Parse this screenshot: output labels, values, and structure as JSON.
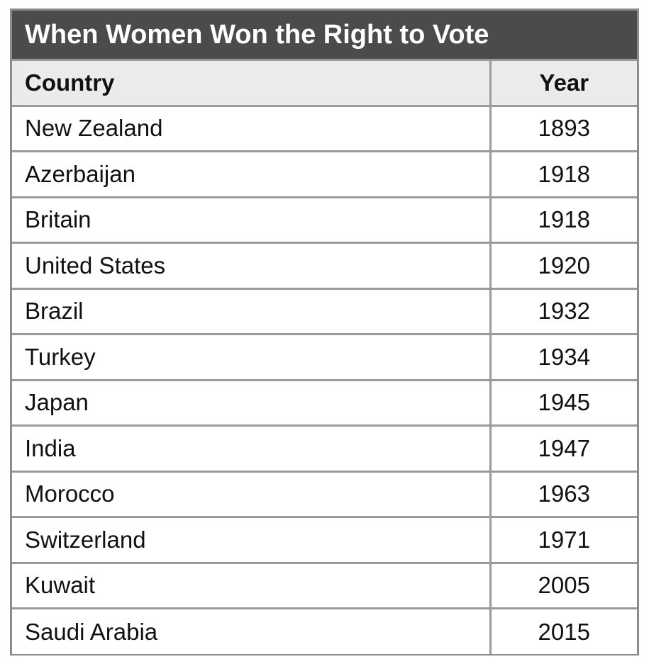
{
  "chart_data": {
    "type": "table",
    "title": "When Women Won the Right to Vote",
    "columns": [
      "Country",
      "Year"
    ],
    "rows": [
      {
        "country": "New Zealand",
        "year": "1893"
      },
      {
        "country": "Azerbaijan",
        "year": "1918"
      },
      {
        "country": "Britain",
        "year": "1918"
      },
      {
        "country": "United States",
        "year": "1920"
      },
      {
        "country": "Brazil",
        "year": "1932"
      },
      {
        "country": "Turkey",
        "year": "1934"
      },
      {
        "country": "Japan",
        "year": "1945"
      },
      {
        "country": "India",
        "year": "1947"
      },
      {
        "country": "Morocco",
        "year": "1963"
      },
      {
        "country": "Switzerland",
        "year": "1971"
      },
      {
        "country": "Kuwait",
        "year": "2005"
      },
      {
        "country": "Saudi Arabia",
        "year": "2015"
      }
    ]
  },
  "colors": {
    "title_background": "#4b4b4b",
    "title_text": "#ffffff",
    "header_background": "#ebebeb",
    "grid_lines": "#9a9a9a"
  }
}
